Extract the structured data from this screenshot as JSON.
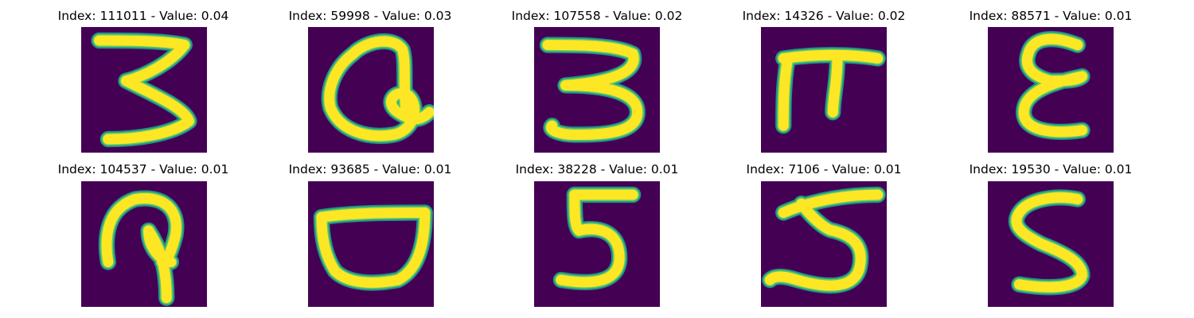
{
  "colors": {
    "background": "#440154",
    "stroke_edge": "#21918c",
    "stroke_mid": "#5ec962",
    "stroke_core": "#fde725"
  },
  "panels": [
    {
      "title": "Index: 111011 - Value: 0.04",
      "index": 111011,
      "value": 0.04,
      "glyph": "3"
    },
    {
      "title": "Index: 59998 - Value: 0.03",
      "index": 59998,
      "value": 0.03,
      "glyph": "Q-like loop"
    },
    {
      "title": "Index: 107558 - Value: 0.02",
      "index": 107558,
      "value": 0.02,
      "glyph": "3"
    },
    {
      "title": "Index: 14326 - Value: 0.02",
      "index": 14326,
      "value": 0.02,
      "glyph": "pi"
    },
    {
      "title": "Index: 88571 - Value: 0.01",
      "index": 88571,
      "value": 0.01,
      "glyph": "epsilon"
    },
    {
      "title": "Index: 104537 - Value: 0.01",
      "index": 104537,
      "value": 0.01,
      "glyph": "hook"
    },
    {
      "title": "Index: 93685 - Value: 0.01",
      "index": 93685,
      "value": 0.01,
      "glyph": "bowl"
    },
    {
      "title": "Index: 38228 - Value: 0.01",
      "index": 38228,
      "value": 0.01,
      "glyph": "5"
    },
    {
      "title": "Index: 7106 - Value: 0.01",
      "index": 7106,
      "value": 0.01,
      "glyph": "5"
    },
    {
      "title": "Index: 19530 - Value: 0.01",
      "index": 19530,
      "value": 0.01,
      "glyph": "S"
    }
  ]
}
